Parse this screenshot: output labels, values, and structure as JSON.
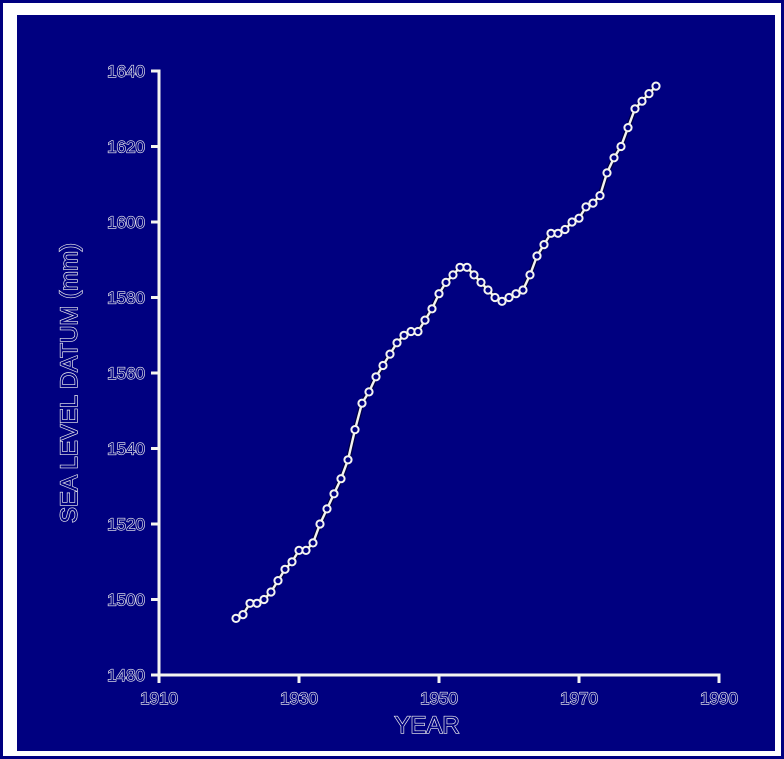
{
  "colors": {
    "background": "#000080",
    "ink": "#f4f4f0",
    "frame": "#ffffff"
  },
  "chart_data": {
    "type": "line",
    "title": "",
    "xlabel": "YEAR",
    "ylabel": "SEA LEVEL DATUM (mm)",
    "xlim": [
      1910,
      1990
    ],
    "ylim": [
      1480,
      1640
    ],
    "xticks": [
      "1910",
      "1930",
      "1950",
      "1970",
      "1990"
    ],
    "yticks": [
      "1480",
      "1500",
      "1520",
      "1540",
      "1560",
      "1580",
      "1600",
      "1620",
      "1640"
    ],
    "grid": false,
    "legend": "none",
    "series": [
      {
        "x": [
          1921,
          1922,
          1923,
          1924,
          1925,
          1926,
          1927,
          1928,
          1929,
          1930,
          1931,
          1932,
          1933,
          1934,
          1935,
          1936,
          1937,
          1938,
          1939,
          1940,
          1941,
          1942,
          1943,
          1944,
          1945,
          1946,
          1947,
          1948,
          1949,
          1950,
          1951,
          1952,
          1953,
          1954,
          1955,
          1956,
          1957,
          1958,
          1959,
          1960,
          1961,
          1962,
          1963,
          1964,
          1965,
          1966,
          1967,
          1968,
          1969,
          1970,
          1971,
          1972,
          1973,
          1974,
          1975,
          1976,
          1977,
          1978,
          1979,
          1980,
          1981
        ],
        "y": [
          1495,
          1496,
          1499,
          1499,
          1500,
          1502,
          1505,
          1508,
          1510,
          1513,
          1513,
          1515,
          1520,
          1524,
          1528,
          1532,
          1537,
          1545,
          1552,
          1555,
          1559,
          1562,
          1565,
          1568,
          1570,
          1571,
          1571,
          1574,
          1577,
          1581,
          1584,
          1586,
          1588,
          1588,
          1586,
          1584,
          1582,
          1580,
          1579,
          1580,
          1581,
          1582,
          1586,
          1591,
          1594,
          1597,
          1597,
          1598,
          1600,
          1601,
          1604,
          1605,
          1607,
          1613,
          1617,
          1620,
          1625,
          1630,
          1632,
          1634,
          1636
        ]
      }
    ]
  }
}
